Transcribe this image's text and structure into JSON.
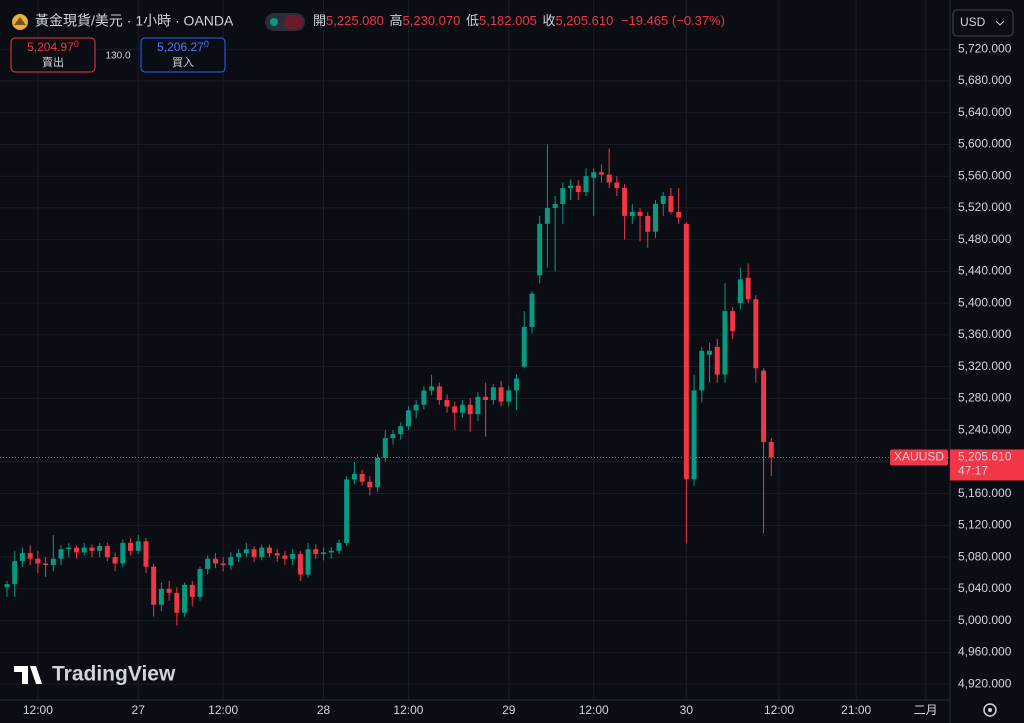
{
  "header": {
    "title": "黃金現貨/美元 · 1小時 · OANDA",
    "open_label": "開",
    "open": "5,225.080",
    "high_label": "高",
    "high": "5,230.070",
    "low_label": "低",
    "low": "5,182.005",
    "close_label": "收",
    "close": "5,205.610",
    "change": "−19.465 (−0.37%)",
    "sell": {
      "price": "5,204.97",
      "digit": "0",
      "label": "賣出"
    },
    "spread": "130.0",
    "buy": {
      "price": "5,206.27",
      "digit": "0",
      "label": "買入"
    },
    "currency": "USD",
    "watermark": "TradingView"
  },
  "chart_data": {
    "type": "candlestick",
    "up_color": "#089981",
    "down_color": "#f23645",
    "categories": [
      null,
      null,
      null,
      null,
      "12:00",
      null,
      null,
      null,
      null,
      null,
      null,
      null,
      null,
      null,
      null,
      null,
      null,
      "27",
      null,
      null,
      null,
      null,
      null,
      null,
      null,
      null,
      null,
      null,
      "12:00",
      null,
      null,
      null,
      null,
      null,
      null,
      null,
      null,
      null,
      null,
      null,
      null,
      "28",
      null,
      null,
      null,
      null,
      null,
      null,
      null,
      null,
      null,
      null,
      "12:00",
      null,
      null,
      null,
      null,
      null,
      null,
      null,
      null,
      null,
      null,
      null,
      null,
      "29",
      null,
      null,
      null,
      null,
      null,
      null,
      null,
      null,
      null,
      null,
      "12:00",
      null,
      null,
      null,
      null,
      null,
      null,
      null,
      null,
      null,
      null,
      null,
      "30",
      null,
      null,
      null,
      null,
      null,
      null,
      null,
      null,
      null,
      null,
      null,
      "12:00",
      null,
      null,
      null,
      null,
      null,
      null,
      null,
      null,
      null,
      "21:00",
      null,
      null,
      null,
      null,
      null,
      null,
      null,
      null,
      "二月",
      null,
      null
    ],
    "open": [
      5042,
      5046,
      5075,
      5085,
      5078,
      5072,
      5070,
      5078,
      5090,
      5092,
      5086,
      5092,
      5088,
      5094,
      5080,
      5072,
      5098,
      5088,
      5100,
      5068,
      5020,
      5040,
      5035,
      5010,
      5045,
      5030,
      5065,
      5078,
      5072,
      5070,
      5080,
      5085,
      5090,
      5080,
      5092,
      5085,
      5082,
      5078,
      5084,
      5058,
      5090,
      5084,
      5086,
      5088,
      5098,
      5178,
      5185,
      5175,
      5168,
      5205,
      5230,
      5235,
      5245,
      5265,
      5272,
      5290,
      5295,
      5278,
      5270,
      5262,
      5272,
      5260,
      5282,
      5278,
      5294,
      5276,
      5290,
      5320,
      5370,
      5435,
      5500,
      5520,
      5525,
      5545,
      5548,
      5540,
      5558,
      5565,
      5562,
      5552,
      5545,
      5510,
      5515,
      5510,
      5490,
      5525,
      5535,
      5515,
      5500,
      5178,
      5290,
      5335,
      5345,
      5310,
      5390,
      5400,
      5432,
      5405,
      5315,
      5225.08,
      null,
      null,
      null,
      null,
      null,
      null,
      null,
      null,
      null,
      null,
      null,
      null,
      null,
      null,
      null,
      null,
      null,
      null,
      null,
      null,
      null,
      null
    ],
    "high": [
      5050,
      5088,
      5092,
      5095,
      5088,
      5080,
      5108,
      5095,
      5098,
      5095,
      5098,
      5096,
      5098,
      5098,
      5086,
      5102,
      5104,
      5108,
      5104,
      5072,
      5048,
      5050,
      5042,
      5048,
      5050,
      5068,
      5082,
      5085,
      5080,
      5086,
      5090,
      5098,
      5094,
      5096,
      5096,
      5090,
      5088,
      5090,
      5088,
      5098,
      5096,
      5092,
      5092,
      5102,
      5182,
      5200,
      5190,
      5182,
      5210,
      5240,
      5240,
      5250,
      5270,
      5278,
      5295,
      5310,
      5300,
      5285,
      5276,
      5278,
      5280,
      5288,
      5300,
      5298,
      5302,
      5296,
      5310,
      5390,
      5415,
      5510,
      5600,
      5535,
      5552,
      5556,
      5555,
      5570,
      5570,
      5575,
      5595,
      5560,
      5550,
      5525,
      5520,
      5515,
      5530,
      5540,
      5545,
      5545,
      5502,
      5310,
      5345,
      5350,
      5355,
      5425,
      5395,
      5445,
      5450,
      5410,
      5318,
      5230.07,
      null,
      null,
      null,
      null,
      null,
      null,
      null,
      null,
      null,
      null,
      null,
      null,
      null,
      null,
      null,
      null,
      null,
      null,
      null,
      null,
      null,
      null
    ],
    "low": [
      5030,
      5030,
      5068,
      5070,
      5060,
      5055,
      5062,
      5070,
      5080,
      5078,
      5082,
      5080,
      5080,
      5075,
      5062,
      5068,
      5082,
      5084,
      5060,
      5005,
      5012,
      5025,
      4994,
      5005,
      5018,
      5025,
      5058,
      5066,
      5062,
      5064,
      5074,
      5080,
      5074,
      5076,
      5080,
      5074,
      5070,
      5070,
      5050,
      5054,
      5078,
      5076,
      5078,
      5084,
      5094,
      5172,
      5170,
      5158,
      5162,
      5200,
      5222,
      5228,
      5240,
      5255,
      5266,
      5284,
      5272,
      5262,
      5240,
      5256,
      5238,
      5252,
      5232,
      5272,
      5270,
      5270,
      5265,
      5318,
      5362,
      5425,
      5445,
      5440,
      5500,
      5530,
      5530,
      5535,
      5510,
      5552,
      5545,
      5535,
      5480,
      5500,
      5478,
      5470,
      5482,
      5510,
      5512,
      5500,
      5097,
      5170,
      5275,
      5300,
      5300,
      5300,
      5355,
      5392,
      5400,
      5300,
      5110,
      5182.005,
      null,
      null,
      null,
      null,
      null,
      null,
      null,
      null,
      null,
      null,
      null,
      null,
      null,
      null,
      null,
      null,
      null,
      null,
      null,
      null,
      null,
      null
    ],
    "close": [
      5046,
      5075,
      5085,
      5078,
      5072,
      5070,
      5078,
      5090,
      5092,
      5086,
      5092,
      5088,
      5094,
      5080,
      5072,
      5098,
      5088,
      5100,
      5068,
      5020,
      5040,
      5035,
      5010,
      5045,
      5030,
      5065,
      5078,
      5072,
      5070,
      5080,
      5085,
      5090,
      5080,
      5092,
      5085,
      5082,
      5078,
      5084,
      5058,
      5090,
      5084,
      5086,
      5088,
      5098,
      5178,
      5185,
      5175,
      5168,
      5205,
      5230,
      5235,
      5245,
      5265,
      5272,
      5290,
      5295,
      5278,
      5270,
      5262,
      5272,
      5260,
      5282,
      5278,
      5294,
      5276,
      5290,
      5305,
      5370,
      5412,
      5500,
      5520,
      5525,
      5545,
      5548,
      5540,
      5560,
      5565,
      5562,
      5552,
      5545,
      5510,
      5515,
      5510,
      5490,
      5525,
      5535,
      5515,
      5508,
      5178,
      5290,
      5340,
      5340,
      5310,
      5390,
      5365,
      5430,
      5405,
      5318,
      5225,
      5205.61,
      null,
      null,
      null,
      null,
      null,
      null,
      null,
      null,
      null,
      null,
      null,
      null,
      null,
      null,
      null,
      null,
      null,
      null,
      null,
      null,
      null,
      null
    ],
    "ylim": [
      4900,
      5782
    ],
    "yticks": [
      {
        "value": 4920,
        "label": "4,920.000"
      },
      {
        "value": 4960,
        "label": "4,960.000"
      },
      {
        "value": 5000,
        "label": "5,000.000"
      },
      {
        "value": 5040,
        "label": "5,040.000"
      },
      {
        "value": 5080,
        "label": "5,080.000"
      },
      {
        "value": 5120,
        "label": "5,120.000"
      },
      {
        "value": 5160,
        "label": "5,160.000"
      },
      {
        "value": 5200,
        "label": "5,200.000"
      },
      {
        "value": 5240,
        "label": "5,240.000"
      },
      {
        "value": 5280,
        "label": "5,280.000"
      },
      {
        "value": 5320,
        "label": "5,320.000"
      },
      {
        "value": 5360,
        "label": "5,360.000"
      },
      {
        "value": 5400,
        "label": "5,400.000"
      },
      {
        "value": 5440,
        "label": "5,440.000"
      },
      {
        "value": 5480,
        "label": "5,480.000"
      },
      {
        "value": 5520,
        "label": "5,520.000"
      },
      {
        "value": 5560,
        "label": "5,560.000"
      },
      {
        "value": 5600,
        "label": "5,600.000"
      },
      {
        "value": 5640,
        "label": "5,640.000"
      },
      {
        "value": 5680,
        "label": "5,680.000"
      },
      {
        "value": 5720,
        "label": "5,720.000"
      }
    ],
    "grid": true,
    "price_tag": {
      "symbol": "XAUUSD",
      "price": "5,205.610",
      "countdown": "47:17"
    }
  }
}
